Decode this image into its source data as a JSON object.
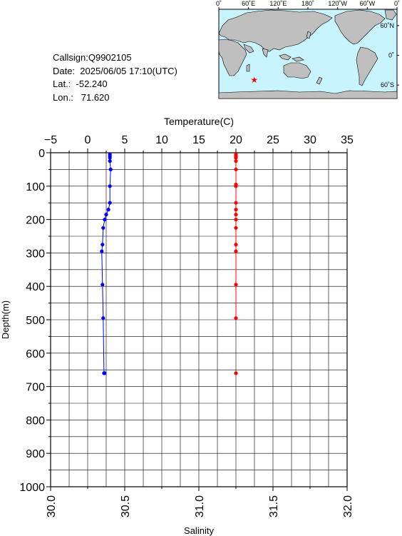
{
  "info": {
    "callsign": "Callsign:Q9902105",
    "date": "Date:  2025/06/05 17:10(UTC)",
    "lat": "Lat.:  -52.240",
    "lon": "Lon.:   71.620"
  },
  "map": {
    "top_ticks": [
      "0˚",
      "60˚E",
      "120˚E",
      "180˚",
      "120˚W",
      "60˚W",
      "0˚"
    ],
    "right_ticks": [
      "60˚N",
      "0˚",
      "60˚S"
    ],
    "marker": {
      "lon": 71.62,
      "lat": -52.24
    },
    "colors": {
      "ocean": "#c8f4ff",
      "land": "#bfbfbf",
      "marker": "#ff0000"
    }
  },
  "chart_data": {
    "type": "line",
    "ylabel": "Depth(m)",
    "y_ticks": [
      "0",
      "100",
      "200",
      "300",
      "400",
      "500",
      "600",
      "700",
      "800",
      "900",
      "1000"
    ],
    "ylim": [
      1000,
      0
    ],
    "top_axis": {
      "label": "Temperature(C)",
      "range": [
        -5,
        35
      ],
      "ticks": [
        "−5",
        "0",
        "5",
        "10",
        "15",
        "20",
        "25",
        "30",
        "35"
      ]
    },
    "bottom_axis": {
      "label": "Salinity",
      "range": [
        30.0,
        32.0
      ],
      "ticks": [
        "30.0",
        "30.5",
        "31.0",
        "31.5",
        "32.0"
      ]
    },
    "series": [
      {
        "color": "#0000ff",
        "axis": "top",
        "x": [
          3.0,
          3.0,
          3.0,
          3.0,
          3.1,
          3.0,
          3.0,
          2.8,
          2.5,
          2.3,
          2.1,
          2.0,
          1.9,
          2.0,
          2.1,
          2.2,
          2.3
        ],
        "y": [
          5,
          10,
          15,
          25,
          50,
          100,
          150,
          170,
          185,
          200,
          225,
          275,
          295,
          395,
          495,
          660,
          660
        ]
      },
      {
        "color": "#ff0000",
        "axis": "bottom",
        "x": [
          31.25,
          31.25,
          31.25,
          31.25,
          31.25,
          31.25,
          31.25,
          31.25,
          31.25,
          31.25,
          31.25,
          31.25,
          31.25,
          31.25,
          31.25,
          31.25
        ],
        "y": [
          5,
          10,
          15,
          25,
          50,
          95,
          100,
          150,
          170,
          185,
          200,
          225,
          275,
          295,
          395,
          495
        ]
      },
      {
        "color": "#ff0000",
        "axis": "bottom",
        "x": [
          31.25
        ],
        "y": [
          660
        ]
      }
    ]
  }
}
